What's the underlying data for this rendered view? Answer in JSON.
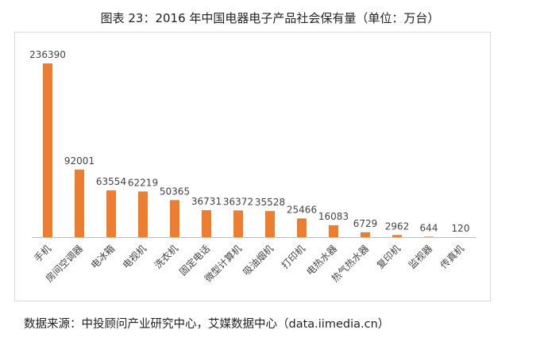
{
  "title": "图表 23：2016 年中国电器电子产品社会保有量（单位：万台）",
  "source": "数据来源：中投顾问产业研究中心，艾媒数据中心（data.iimedia.cn）",
  "colors": {
    "bar": "#ED7D31",
    "axis": "#bfbfbf",
    "frame": "#d9d9d9"
  },
  "chart_data": {
    "type": "bar",
    "title": "图表 23：2016 年中国电器电子产品社会保有量（单位：万台）",
    "categories": [
      "手机",
      "房间空调器",
      "电冰箱",
      "电视机",
      "洗衣机",
      "固定电话",
      "微型计算机",
      "吸油烟机",
      "打印机",
      "电热水器",
      "热气热水器",
      "复印机",
      "监视器",
      "传真机"
    ],
    "values": [
      236390,
      92001,
      63554,
      62219,
      50365,
      36731,
      36372,
      35528,
      25466,
      16083,
      6729,
      2962,
      644,
      120
    ],
    "ylim": [
      0,
      236390
    ],
    "grid": false,
    "legend": "none"
  }
}
